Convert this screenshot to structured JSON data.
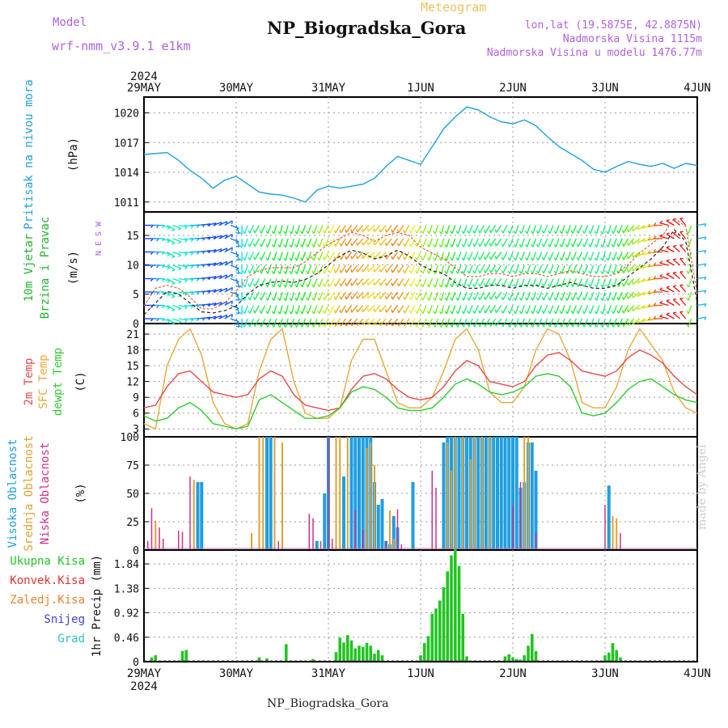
{
  "header": {
    "title": "NP_Biogradska_Gora",
    "subtitle": "Meteogram",
    "model_label": "Model",
    "model_name": "wrf-nmm_v3.9.1  e1km",
    "coords": "lon,lat (19.5875E, 42.8875N)",
    "elevation": "Nadmorska Visina 1115m",
    "model_elevation": "Nadmorska Visina u modelu 1476.77m",
    "footer": "NP_Biogradska_Gora",
    "credit": "made by Angel"
  },
  "time_axis": {
    "labels": [
      "29MAY",
      "30MAY",
      "31MAY",
      "1JUN",
      "2JUN",
      "3JUN",
      "4JUN"
    ],
    "year": "2024",
    "hours": 144
  },
  "colors": {
    "pressure": "#1f9fe0",
    "temp2m": "#e84a4a",
    "sfc_temp": "#e8a83a",
    "dewpt": "#2ecc2e",
    "high_cloud": "#1f9fe0",
    "mid_cloud": "#e0a030",
    "low_cloud": "#d0308a",
    "total_precip": "#22c422",
    "convective": "#e83030",
    "snow": "#4040e0",
    "grad": "#30c0c0",
    "zaledj": "#f08030"
  },
  "chart_data": [
    {
      "type": "line",
      "name": "pressure",
      "ylabel_main": "Pritisak na nivou mora",
      "unit": "(hPa)",
      "yticks": [
        1011,
        1014,
        1017,
        1020
      ],
      "ylim": [
        1010.0,
        1021.6
      ],
      "x_hours": [
        0,
        6,
        9,
        12,
        15,
        18,
        21,
        24,
        27,
        30,
        33,
        36,
        39,
        42,
        45,
        48,
        51,
        54,
        57,
        60,
        63,
        66,
        69,
        72,
        75,
        78,
        81,
        84,
        87,
        90,
        93,
        96,
        99,
        102,
        105,
        108,
        111,
        114,
        117,
        120,
        123,
        126,
        129,
        132,
        135,
        138,
        141,
        144
      ],
      "values": [
        1015.8,
        1016.0,
        1015.2,
        1014.2,
        1013.4,
        1012.4,
        1013.2,
        1013.6,
        1012.8,
        1012.0,
        1011.8,
        1011.7,
        1011.4,
        1011.0,
        1012.2,
        1012.6,
        1012.4,
        1012.6,
        1012.8,
        1013.4,
        1014.6,
        1015.6,
        1015.2,
        1014.8,
        1016.6,
        1018.4,
        1019.6,
        1020.6,
        1020.3,
        1019.6,
        1019.1,
        1018.9,
        1019.3,
        1018.7,
        1017.6,
        1016.6,
        1015.9,
        1015.2,
        1014.3,
        1014.0,
        1014.6,
        1015.1,
        1014.8,
        1014.6,
        1014.9,
        1014.4,
        1014.9,
        1014.7
      ]
    },
    {
      "type": "line",
      "name": "wind",
      "ylabel_main": "10m Vjetar",
      "ylabel_sub": "Brzina i Pravac",
      "unit": "(m/s)",
      "compass": "N  E  S  W",
      "yticks": [
        0,
        5,
        10,
        15
      ],
      "ylim": [
        0,
        19
      ],
      "x_hours": [
        0,
        3,
        6,
        9,
        12,
        15,
        18,
        21,
        24,
        27,
        30,
        33,
        36,
        39,
        42,
        45,
        48,
        51,
        54,
        57,
        60,
        63,
        66,
        69,
        72,
        75,
        78,
        81,
        84,
        87,
        90,
        93,
        96,
        99,
        102,
        105,
        108,
        111,
        114,
        117,
        120,
        123,
        126,
        129,
        132,
        135,
        138,
        141,
        144
      ],
      "values": [
        1.5,
        3.5,
        5.5,
        5.0,
        3.5,
        2.0,
        1.8,
        2.2,
        3.0,
        5.0,
        6.5,
        7.0,
        7.2,
        7.0,
        7.5,
        8.5,
        10.0,
        11.5,
        12.5,
        12.0,
        11.0,
        11.5,
        12.5,
        11.5,
        10.0,
        9.0,
        8.5,
        7.0,
        6.0,
        6.0,
        6.5,
        6.5,
        6.0,
        6.5,
        6.5,
        6.0,
        6.5,
        7.0,
        6.5,
        6.0,
        6.0,
        6.5,
        8.0,
        9.5,
        11.0,
        13.0,
        16.0,
        14.0,
        3.5
      ],
      "gust_values": [
        3.0,
        6.0,
        6.5,
        6.0,
        4.5,
        2.5,
        2.5,
        3.5,
        5.5,
        8.0,
        9.0,
        9.5,
        9.5,
        9.5,
        10.5,
        12.0,
        13.5,
        14.5,
        15.5,
        15.0,
        14.0,
        15.0,
        15.5,
        15.0,
        13.0,
        12.0,
        11.0,
        9.5,
        8.0,
        8.0,
        8.5,
        8.5,
        8.0,
        8.5,
        8.5,
        8.0,
        8.5,
        9.0,
        8.5,
        8.0,
        8.0,
        8.5,
        10.0,
        12.0,
        13.5,
        15.0,
        18.0,
        16.5,
        5.0
      ],
      "direction_deg": [
        90,
        90,
        120,
        100,
        90,
        80,
        70,
        60,
        160,
        200,
        210,
        200,
        195,
        195,
        200,
        200,
        205,
        210,
        215,
        220,
        225,
        220,
        215,
        210,
        205,
        200,
        195,
        200,
        200,
        205,
        210,
        215,
        200,
        200,
        200,
        205,
        200,
        200,
        205,
        200,
        195,
        200,
        210,
        230,
        250,
        270,
        300,
        320,
        80
      ]
    },
    {
      "type": "line",
      "name": "temperature",
      "ylabels": [
        "2m Temp",
        "SFC Temp",
        "dewpt Temp"
      ],
      "unit": "(C)",
      "yticks": [
        3,
        6,
        9,
        12,
        15,
        18,
        21
      ],
      "ylim": [
        1.5,
        23
      ],
      "x_hours": [
        0,
        3,
        6,
        9,
        12,
        15,
        18,
        21,
        24,
        27,
        30,
        33,
        36,
        39,
        42,
        45,
        48,
        51,
        54,
        57,
        60,
        63,
        66,
        69,
        72,
        75,
        78,
        81,
        84,
        87,
        90,
        93,
        96,
        99,
        102,
        105,
        108,
        111,
        114,
        117,
        120,
        123,
        126,
        129,
        132,
        135,
        138,
        141,
        144
      ],
      "series": [
        {
          "name": "2m Temp",
          "values": [
            7.0,
            7.5,
            11.0,
            13.5,
            14.0,
            12.0,
            10.0,
            9.5,
            9.0,
            9.5,
            12.5,
            14.0,
            13.0,
            9.5,
            7.5,
            7.0,
            6.5,
            7.0,
            10.5,
            13.0,
            13.5,
            12.5,
            10.5,
            9.0,
            8.5,
            9.0,
            11.0,
            14.0,
            16.0,
            15.0,
            12.0,
            11.5,
            11.0,
            12.0,
            15.0,
            17.0,
            17.5,
            16.0,
            14.0,
            13.5,
            13.0,
            14.0,
            16.5,
            18.0,
            17.0,
            15.5,
            13.0,
            11.0,
            9.5
          ]
        },
        {
          "name": "SFC Temp",
          "values": [
            4.0,
            3.0,
            15.0,
            20.0,
            22.0,
            17.0,
            8.0,
            4.0,
            3.0,
            4.0,
            14.0,
            20.0,
            22.0,
            12.0,
            6.0,
            5.0,
            5.0,
            7.0,
            16.0,
            20.0,
            20.0,
            14.0,
            8.0,
            7.0,
            7.0,
            9.0,
            14.0,
            20.0,
            22.0,
            18.0,
            10.0,
            8.0,
            8.0,
            11.0,
            18.0,
            22.0,
            21.0,
            16.0,
            8.0,
            7.0,
            7.0,
            11.0,
            18.0,
            22.0,
            19.0,
            16.0,
            10.0,
            7.0,
            6.0
          ]
        },
        {
          "name": "dewpt Temp",
          "values": [
            5.5,
            4.5,
            5.0,
            7.0,
            8.0,
            6.5,
            4.0,
            3.5,
            3.0,
            3.5,
            8.5,
            9.5,
            8.0,
            6.5,
            5.0,
            5.0,
            5.5,
            7.0,
            10.0,
            11.0,
            10.5,
            9.0,
            7.0,
            6.5,
            6.5,
            7.0,
            9.0,
            11.5,
            12.5,
            11.5,
            10.0,
            9.5,
            10.0,
            11.0,
            13.0,
            13.5,
            13.0,
            11.0,
            6.0,
            5.5,
            6.0,
            8.0,
            10.5,
            12.0,
            12.5,
            11.0,
            9.5,
            8.5,
            8.0
          ]
        }
      ]
    },
    {
      "type": "bar",
      "name": "cloud_cover",
      "ylabels": [
        "Visoka Oblacnost",
        "Srednja Oblacnost",
        "Niska Oblacnost"
      ],
      "unit": "(%)",
      "yticks": [
        0,
        25,
        50,
        75,
        100
      ],
      "ylim": [
        0,
        100
      ],
      "series": [
        {
          "name": "Visoka Oblacnost",
          "hours": [
            14,
            15,
            32,
            33,
            45,
            47,
            48,
            52,
            54,
            55,
            56,
            57,
            58,
            59,
            60,
            61,
            62,
            63,
            64,
            65,
            66,
            70,
            78,
            79,
            80,
            81,
            82,
            83,
            84,
            85,
            86,
            87,
            88,
            89,
            90,
            91,
            92,
            93,
            94,
            95,
            96,
            97,
            98,
            99,
            100,
            101,
            102,
            121
          ],
          "values": [
            60,
            60,
            100,
            100,
            8,
            50,
            100,
            65,
            100,
            100,
            100,
            100,
            100,
            100,
            60,
            40,
            45,
            8,
            5,
            30,
            20,
            60,
            95,
            100,
            100,
            100,
            100,
            100,
            100,
            100,
            100,
            100,
            100,
            100,
            100,
            100,
            100,
            100,
            100,
            100,
            100,
            100,
            55,
            60,
            95,
            95,
            70,
            57
          ]
        },
        {
          "name": "Srednja Oblacnost",
          "hours": [
            3,
            13,
            28,
            30,
            31,
            34,
            36,
            50,
            51,
            53,
            58,
            59,
            60,
            64,
            65,
            79,
            80,
            81,
            83,
            85,
            86,
            88,
            90,
            99,
            100,
            122,
            123
          ],
          "values": [
            26,
            62,
            15,
            100,
            100,
            100,
            95,
            100,
            100,
            100,
            90,
            95,
            75,
            35,
            10,
            95,
            70,
            100,
            100,
            80,
            100,
            100,
            100,
            100,
            100,
            30,
            28
          ]
        },
        {
          "name": "Niska Oblacnost",
          "hours": [
            1,
            2,
            4,
            5,
            9,
            10,
            12,
            35,
            43,
            44,
            46,
            48,
            49,
            55,
            57,
            63,
            66,
            67,
            75,
            76,
            96,
            98,
            102,
            120,
            124
          ],
          "values": [
            8,
            37,
            20,
            10,
            17,
            16,
            65,
            8,
            32,
            28,
            8,
            100,
            10,
            35,
            18,
            8,
            36,
            5,
            70,
            55,
            40,
            60,
            15,
            40,
            15
          ]
        }
      ]
    },
    {
      "type": "bar",
      "name": "precipitation",
      "ylabels": [
        "Ukupna Kisa",
        "Konvek.Kisa",
        "Zaledj.Kisa",
        "Snijeg",
        "Grad"
      ],
      "unit": "1hr Precip (mm)",
      "yticks": [
        0,
        0.46,
        0.92,
        1.38,
        1.84
      ],
      "ylim": [
        0,
        2.1
      ],
      "series": [
        {
          "name": "Ukupna Kisa",
          "hours": [
            2,
            3,
            10,
            11,
            30,
            32,
            37,
            44,
            50,
            51,
            52,
            53,
            54,
            55,
            56,
            57,
            58,
            59,
            60,
            61,
            62,
            72,
            73,
            74,
            75,
            76,
            77,
            78,
            79,
            80,
            81,
            82,
            83,
            84,
            94,
            95,
            96,
            97,
            98,
            99,
            100,
            101,
            102,
            120,
            121,
            122,
            123,
            124
          ],
          "values": [
            0.08,
            0.12,
            0.2,
            0.22,
            0.08,
            0.06,
            0.33,
            0.05,
            0.18,
            0.45,
            0.36,
            0.5,
            0.4,
            0.25,
            0.3,
            0.28,
            0.35,
            0.3,
            0.15,
            0.22,
            0.12,
            0.12,
            0.35,
            0.48,
            0.9,
            1.0,
            1.15,
            1.4,
            1.7,
            2.0,
            2.12,
            1.8,
            0.9,
            0.1,
            0.1,
            0.14,
            0.08,
            0.05,
            0.04,
            0.12,
            0.3,
            0.52,
            0.2,
            0.12,
            0.17,
            0.35,
            0.22,
            0.08
          ]
        }
      ]
    }
  ]
}
